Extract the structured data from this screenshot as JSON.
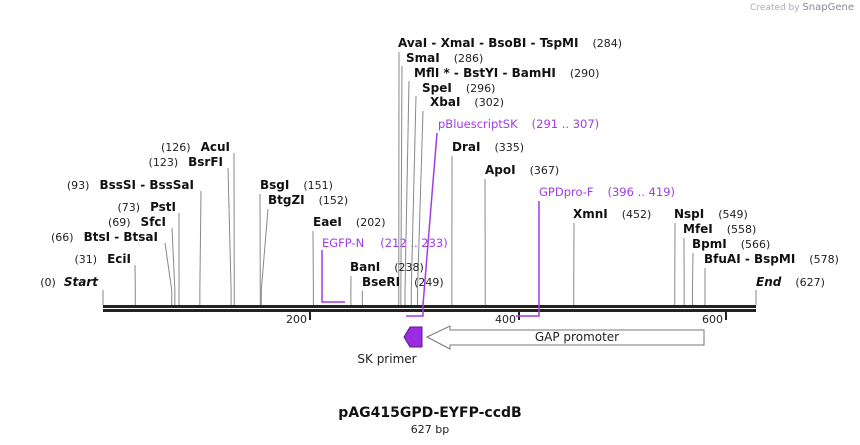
{
  "credit": {
    "prefix": "Created by",
    "brand": "SnapGene"
  },
  "map": {
    "name": "pAG415GPD-EYFP-ccdB",
    "length_label": "627 bp",
    "length_bp": 627
  },
  "start": {
    "label": "Start",
    "position": "(0)"
  },
  "end": {
    "label": "End",
    "position": "(627)"
  },
  "ticks": [
    "200",
    "400",
    "600"
  ],
  "enzymes": [
    {
      "name": "AvaI  -  XmaI  -  BsoBI  -  TspMI",
      "position": "(284)"
    },
    {
      "name": "SmaI",
      "position": "(286)"
    },
    {
      "name": "MflI * - BstYI  -  BamHI",
      "position": "(290)"
    },
    {
      "name": "SpeI",
      "position": "(296)"
    },
    {
      "name": "XbaI",
      "position": "(302)"
    },
    {
      "name": "DraI",
      "position": "(335)"
    },
    {
      "name": "ApoI",
      "position": "(367)"
    },
    {
      "name": "XmnI",
      "position": "(452)"
    },
    {
      "name": "NspI",
      "position": "(549)"
    },
    {
      "name": "MfeI",
      "position": "(558)"
    },
    {
      "name": "BpmI",
      "position": "(566)"
    },
    {
      "name": "BfuAI  -  BspMI",
      "position": "(578)"
    },
    {
      "name": "BanI",
      "position": "(238)"
    },
    {
      "name": "BseRI",
      "position": "(249)"
    },
    {
      "name": "EaeI",
      "position": "(202)"
    },
    {
      "name": "BsgI",
      "position": "(151)"
    },
    {
      "name": "BtgZI",
      "position": "(152)"
    },
    {
      "name": "AcuI",
      "position": "(126)"
    },
    {
      "name": "BsrFI",
      "position": "(123)"
    },
    {
      "name": "BssSI  -  BssSaI",
      "position": "(93)"
    },
    {
      "name": "PstI",
      "position": "(73)"
    },
    {
      "name": "SfcI",
      "position": "(69)"
    },
    {
      "name": "BtsI  -  BtsaI",
      "position": "(66)"
    },
    {
      "name": "EciI",
      "position": "(31)"
    }
  ],
  "primers": [
    {
      "name": "pBluescriptSK",
      "range": "(291 .. 307)",
      "start": 291,
      "end": 307
    },
    {
      "name": "GPDpro-F",
      "range": "(396 .. 419)",
      "start": 396,
      "end": 419
    },
    {
      "name": "EGFP-N",
      "range": "(212 .. 233)",
      "start": 212,
      "end": 233
    }
  ],
  "features": {
    "sk_primer": "SK primer",
    "gap_promoter": "GAP promoter"
  },
  "colors": {
    "primer": "#a03ce6",
    "line": "#888888",
    "bar": "#222222"
  }
}
